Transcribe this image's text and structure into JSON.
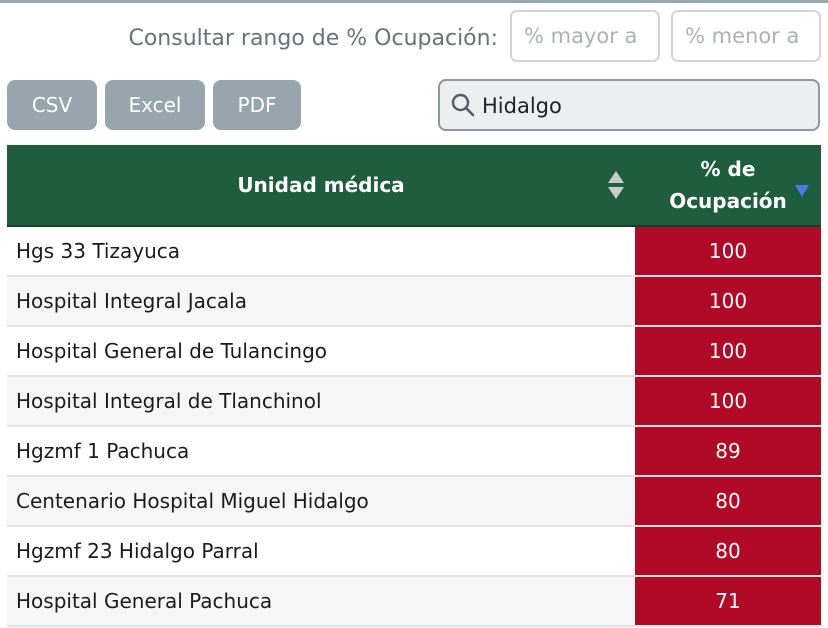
{
  "filters": {
    "range_label": "Consultar rango de % Ocupación:",
    "min_placeholder": "% mayor a",
    "max_placeholder": "% menor a"
  },
  "export": {
    "csv_label": "CSV",
    "excel_label": "Excel",
    "pdf_label": "PDF"
  },
  "search": {
    "value": "Hidalgo",
    "icon": "search-icon"
  },
  "table": {
    "headers": {
      "unit": "Unidad médica",
      "occupancy_line1": "% de",
      "occupancy_line2": "Ocupación"
    },
    "sort": {
      "column": "occupancy",
      "direction": "desc"
    },
    "rows": [
      {
        "unit": "Hgs 33 Tizayuca",
        "occupancy": "100"
      },
      {
        "unit": "Hospital Integral Jacala",
        "occupancy": "100"
      },
      {
        "unit": "Hospital General de Tulancingo",
        "occupancy": "100"
      },
      {
        "unit": "Hospital Integral de Tlanchinol",
        "occupancy": "100"
      },
      {
        "unit": "Hgzmf 1 Pachuca",
        "occupancy": "89"
      },
      {
        "unit": "Centenario Hospital Miguel Hidalgo",
        "occupancy": "80"
      },
      {
        "unit": "Hgzmf 23 Hidalgo Parral",
        "occupancy": "80"
      },
      {
        "unit": "Hospital General Pachuca",
        "occupancy": "71"
      }
    ]
  },
  "colors": {
    "header_green": "#1e5e3f",
    "occupancy_red": "#b10a26",
    "button_gray": "#97a5ad"
  }
}
